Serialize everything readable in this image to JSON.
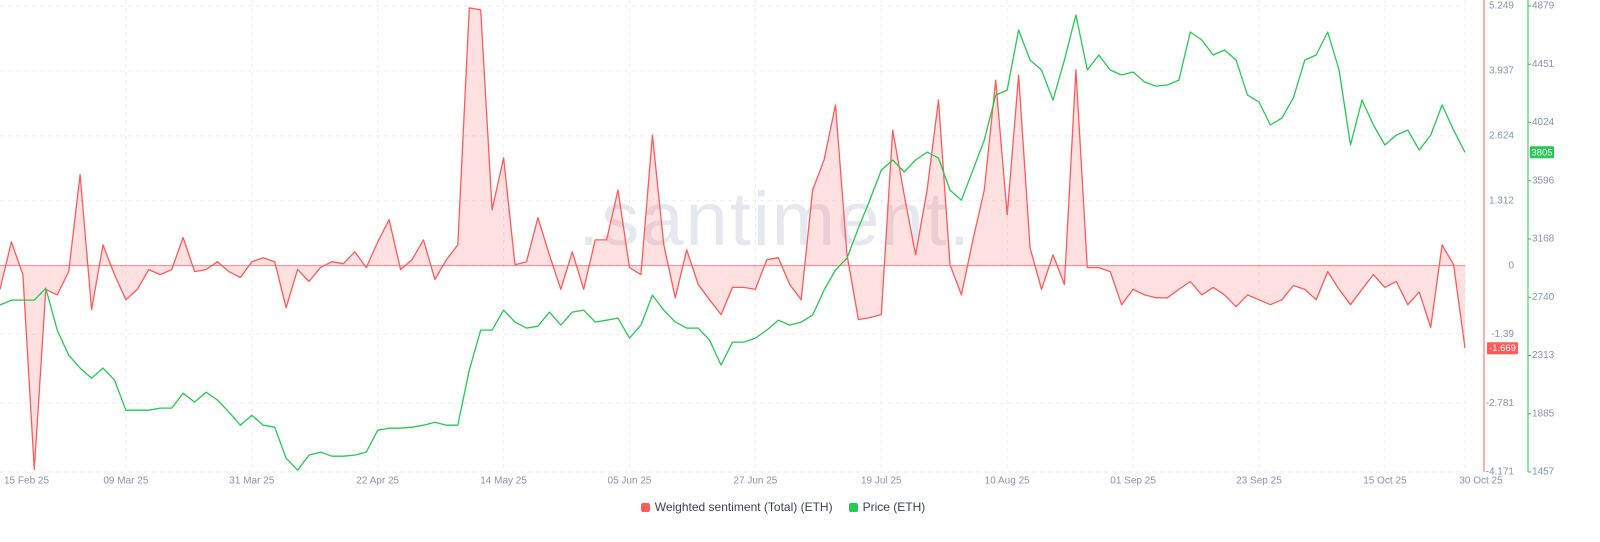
{
  "chart_data": {
    "type": "line",
    "watermark": ".santiment.",
    "categories": [
      "15 Feb 25",
      null,
      null,
      null,
      null,
      null,
      null,
      null,
      null,
      null,
      null,
      "09 Mar 25",
      null,
      null,
      null,
      null,
      null,
      null,
      null,
      null,
      null,
      null,
      "31 Mar 25",
      null,
      null,
      null,
      null,
      null,
      null,
      null,
      null,
      null,
      null,
      "22 Apr 25",
      null,
      null,
      null,
      null,
      null,
      null,
      null,
      null,
      null,
      null,
      "14 May 25",
      null,
      null,
      null,
      null,
      null,
      null,
      null,
      null,
      null,
      null,
      "05 Jun 25",
      null,
      null,
      null,
      null,
      null,
      null,
      null,
      null,
      null,
      null,
      "27 Jun 25",
      null,
      null,
      null,
      null,
      null,
      null,
      null,
      null,
      null,
      null,
      "19 Jul 25",
      null,
      null,
      null,
      null,
      null,
      null,
      null,
      null,
      null,
      null,
      "10 Aug 25",
      null,
      null,
      null,
      null,
      null,
      null,
      null,
      null,
      null,
      null,
      "01 Sep 25",
      null,
      null,
      null,
      null,
      null,
      null,
      null,
      null,
      null,
      null,
      "23 Sep 25",
      null,
      null,
      null,
      null,
      null,
      null,
      null,
      null,
      null,
      null,
      "15 Oct 25",
      null,
      null,
      null,
      null,
      null,
      null,
      "30 Oct 25"
    ],
    "series": [
      {
        "name": "Weighted sentiment (Total) (ETH)",
        "color": "#ff5b5b",
        "axis": "y",
        "area": true,
        "values": [
          -0.48,
          0.48,
          -0.18,
          -4.12,
          -0.48,
          -0.59,
          -0.12,
          1.84,
          -0.89,
          0.42,
          -0.18,
          -0.69,
          -0.48,
          -0.08,
          -0.18,
          -0.08,
          0.57,
          -0.12,
          -0.08,
          0.08,
          -0.12,
          -0.24,
          0.08,
          0.16,
          0.08,
          -0.85,
          -0.08,
          -0.32,
          -0.04,
          0.08,
          0.04,
          0.28,
          -0.04,
          0.48,
          0.93,
          -0.08,
          0.12,
          0.52,
          -0.28,
          0.12,
          0.42,
          5.21,
          5.17,
          1.13,
          2.18,
          0.02,
          0.08,
          0.97,
          0.22,
          -0.48,
          0.28,
          -0.48,
          0.52,
          0.52,
          1.53,
          -0.04,
          -0.18,
          2.64,
          0.42,
          -0.65,
          0.32,
          -0.38,
          -0.69,
          -0.99,
          -0.44,
          -0.44,
          -0.48,
          0.12,
          0.16,
          -0.38,
          -0.69,
          1.53,
          2.14,
          3.25,
          0.22,
          -1.09,
          -1.05,
          -0.99,
          2.74,
          1.43,
          0.22,
          1.53,
          3.35,
          0.02,
          -0.59,
          0.52,
          1.53,
          3.75,
          1.03,
          3.85,
          0.36,
          -0.48,
          0.22,
          -0.38,
          3.96,
          -0.04,
          -0.04,
          -0.12,
          -0.79,
          -0.48,
          -0.59,
          -0.65,
          -0.65,
          -0.48,
          -0.32,
          -0.59,
          -0.44,
          -0.59,
          -0.83,
          -0.59,
          -0.69,
          -0.79,
          -0.69,
          -0.4,
          -0.48,
          -0.69,
          -0.12,
          -0.48,
          -0.79,
          -0.48,
          -0.18,
          -0.44,
          -0.32,
          -0.79,
          -0.53,
          -1.25,
          0.42,
          0.02,
          -1.669
        ]
      },
      {
        "name": "Price (ETH)",
        "color": "#26c953",
        "axis": "y2",
        "area": false,
        "values": [
          2683,
          2719,
          2719,
          2719,
          2807,
          2499,
          2315,
          2220,
          2146,
          2220,
          2132,
          1911,
          1911,
          1911,
          1926,
          1926,
          2036,
          1970,
          2043,
          1985,
          1897,
          1801,
          1874,
          1801,
          1786,
          1559,
          1470,
          1581,
          1603,
          1573,
          1573,
          1581,
          1603,
          1764,
          1779,
          1779,
          1786,
          1801,
          1823,
          1801,
          1801,
          2205,
          2499,
          2499,
          2646,
          2558,
          2514,
          2528,
          2631,
          2536,
          2631,
          2646,
          2558,
          2572,
          2587,
          2440,
          2536,
          2756,
          2646,
          2558,
          2514,
          2514,
          2425,
          2242,
          2411,
          2411,
          2440,
          2499,
          2572,
          2536,
          2558,
          2609,
          2793,
          2940,
          3028,
          3248,
          3454,
          3674,
          3748,
          3660,
          3748,
          3806,
          3762,
          3527,
          3454,
          3674,
          3895,
          4225,
          4262,
          4703,
          4482,
          4409,
          4188,
          4482,
          4813,
          4409,
          4519,
          4409,
          4372,
          4394,
          4321,
          4291,
          4299,
          4335,
          4688,
          4629,
          4519,
          4556,
          4482,
          4225,
          4174,
          4005,
          4056,
          4203,
          4482,
          4519,
          4688,
          4409,
          3858,
          4188,
          4005,
          3858,
          3931,
          3968,
          3821,
          3931,
          4152,
          3968,
          3805
        ]
      }
    ],
    "ylim": [
      -4.171,
      5.249
    ],
    "yticks": [
      5.249,
      3.937,
      2.624,
      1.312,
      0,
      -1.39,
      -2.781,
      -4.171
    ],
    "y2lim": [
      1457,
      4879
    ],
    "y2ticks": [
      4879,
      4451,
      4024,
      3596,
      3168,
      2740,
      2313,
      1885,
      1457
    ],
    "grid": true
  }
}
